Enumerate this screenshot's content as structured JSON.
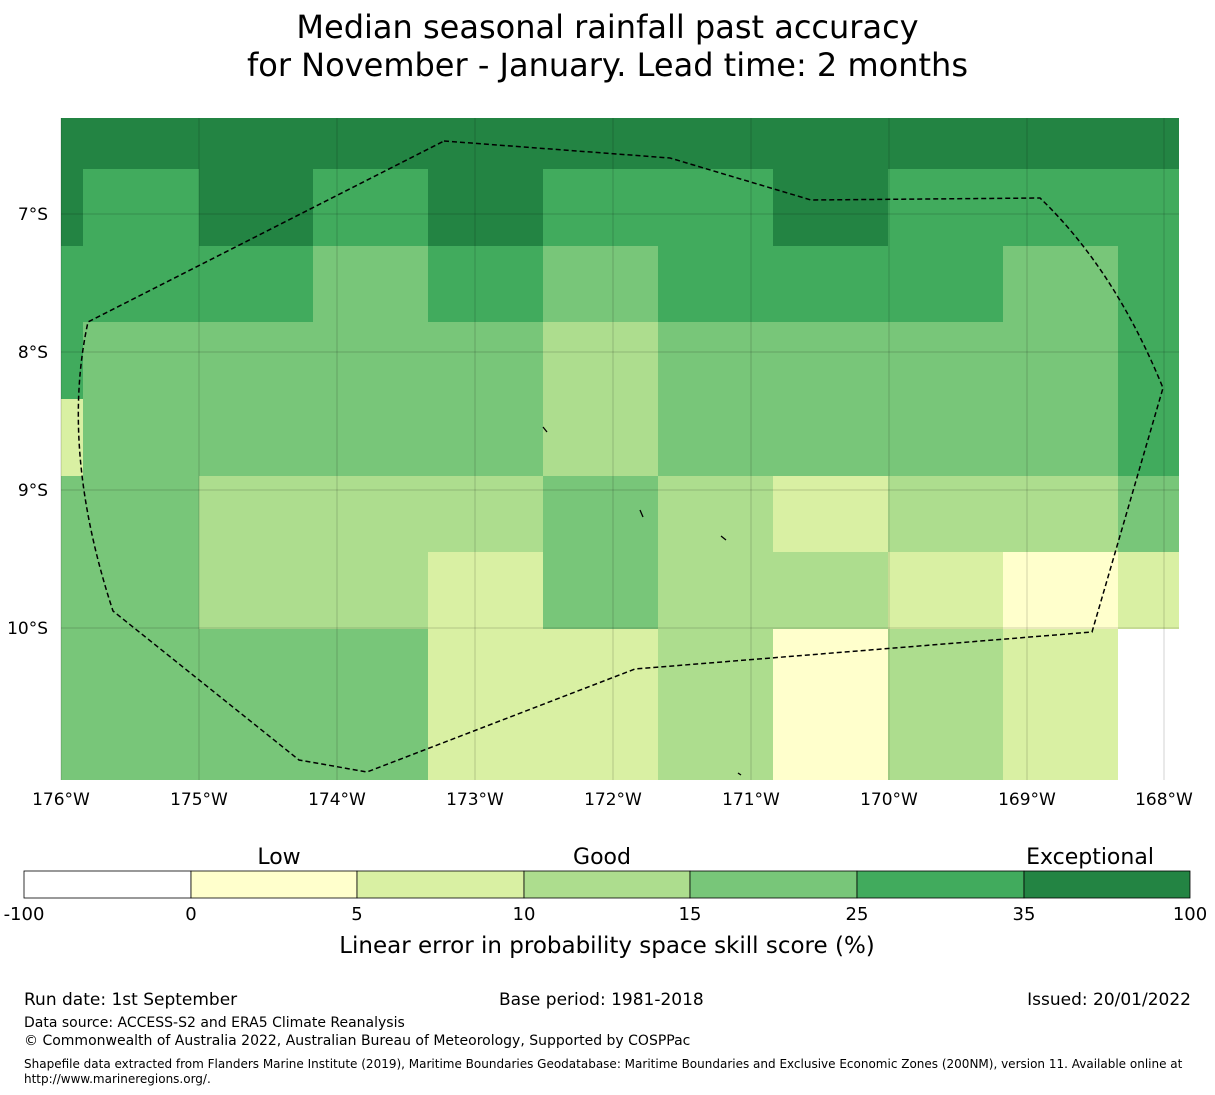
{
  "title": {
    "line1": "Median seasonal rainfall past accuracy",
    "line2": "for November - January. Lead time: 2 months"
  },
  "map": {
    "lat_labels": [
      "7°S",
      "8°S",
      "9°S",
      "10°S"
    ],
    "lon_labels": [
      "176°W",
      "175°W",
      "174°W",
      "173°W",
      "172°W",
      "171°W",
      "170°W",
      "169°W",
      "168°W"
    ],
    "grid": [
      [
        6,
        6,
        6,
        6,
        6,
        6,
        6,
        6,
        6,
        6
      ],
      [
        5,
        6,
        5,
        6,
        5,
        5,
        6,
        5,
        5,
        5
      ],
      [
        5,
        5,
        4,
        5,
        4,
        5,
        5,
        5,
        4,
        5
      ],
      [
        4,
        4,
        4,
        4,
        3,
        4,
        4,
        4,
        4,
        5
      ],
      [
        4,
        4,
        4,
        4,
        3,
        4,
        4,
        4,
        4,
        5
      ],
      [
        4,
        3,
        3,
        3,
        4,
        3,
        2,
        3,
        3,
        4
      ],
      [
        4,
        3,
        3,
        2,
        4,
        3,
        3,
        2,
        1,
        2
      ],
      [
        4,
        4,
        4,
        2,
        2,
        3,
        1,
        3,
        2,
        0
      ],
      [
        4,
        4,
        4,
        2,
        2,
        3,
        1,
        3,
        2,
        0
      ]
    ],
    "class_colors": [
      "#ffffff",
      "#ffffcc",
      "#d9f0a3",
      "#addd8e",
      "#78c679",
      "#41ab5d",
      "#238443"
    ],
    "boundary_style": "dashed"
  },
  "legend": {
    "category_low": "Low",
    "category_good": "Good",
    "category_exceptional": "Exceptional",
    "ticks": [
      "-100",
      "0",
      "5",
      "10",
      "15",
      "25",
      "35",
      "100"
    ],
    "colors": [
      "#ffffff",
      "#ffffcc",
      "#d9f0a3",
      "#addd8e",
      "#78c679",
      "#41ab5d",
      "#238443"
    ],
    "label": "Linear error in probability space skill score (%)"
  },
  "footer": {
    "run_date": "Run date: 1st September",
    "base_period": "Base period: 1981-2018",
    "issued": "Issued: 20/01/2022",
    "data_source": "Data source: ACCESS-S2 and ERA5 Climate Reanalysis",
    "copyright": "© Commonwealth of Australia 2022, Australian Bureau of Meteorology, Supported by COSPPac",
    "shapefile_line1": "Shapefile data extracted from Flanders Marine Institute (2019), Maritime Boundaries Geodatabase: Maritime Boundaries and Exclusive Economic Zones (200NM), version 11. Available online at",
    "shapefile_line2": "http://www.marineregions.org/."
  }
}
